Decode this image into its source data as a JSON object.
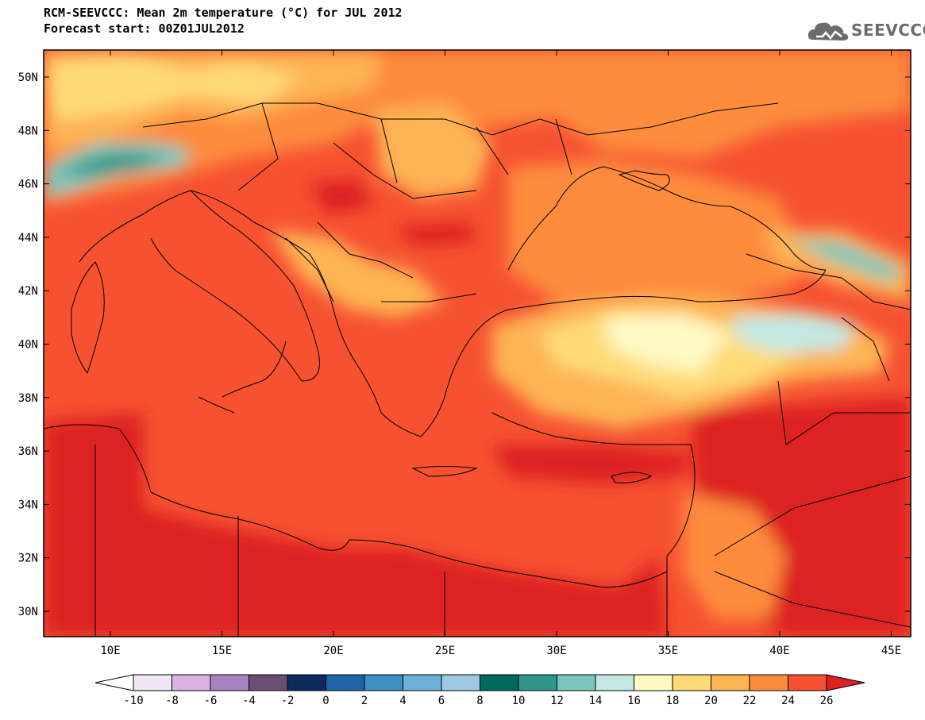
{
  "header": {
    "line1": "RCM-SEEVCCC: Mean 2m temperature (°C) for JUL 2012",
    "line2": "Forecast start: 00Z01JUL2012"
  },
  "logo": {
    "text": "SEEVCCC",
    "icon": "cloud-icon"
  },
  "map": {
    "lon_ticks": [
      "10E",
      "15E",
      "20E",
      "25E",
      "30E",
      "35E",
      "40E",
      "45E"
    ],
    "lat_ticks": [
      "50N",
      "48N",
      "46N",
      "44N",
      "42N",
      "40N",
      "38N",
      "36N",
      "34N",
      "32N",
      "30N"
    ]
  },
  "colorbar": {
    "labels": [
      "-10",
      "-8",
      "-6",
      "-4",
      "-2",
      "0",
      "2",
      "4",
      "6",
      "8",
      "10",
      "12",
      "14",
      "16",
      "18",
      "20",
      "22",
      "24",
      "26"
    ],
    "colors": [
      "#ffffff",
      "#f1e6f6",
      "#d9b3e3",
      "#a883bf",
      "#6b4e74",
      "#0d2a5c",
      "#1f64a6",
      "#3e8fc6",
      "#6db0da",
      "#9fc8e2",
      "#00695a",
      "#2e978a",
      "#78c8bc",
      "#c3e8e3",
      "#fff9c4",
      "#ffdb78",
      "#fdb452",
      "#fd8c3c",
      "#f65232",
      "#dd2020"
    ]
  }
}
